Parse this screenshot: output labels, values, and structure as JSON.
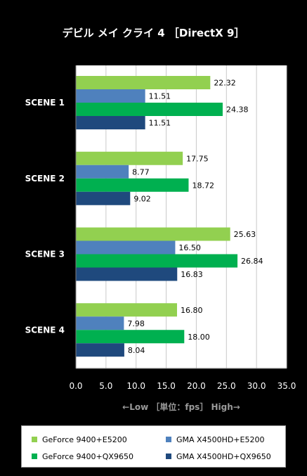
{
  "chart_data": {
    "type": "bar",
    "orientation": "horizontal",
    "title": "デビル メイ クライ 4 ［DirectX 9］",
    "xlabel": "←Low ［単位：fps］ High→",
    "categories": [
      "SCENE 1",
      "SCENE 2",
      "SCENE 3",
      "SCENE 4"
    ],
    "xlim": [
      0,
      35
    ],
    "ticks": [
      "0.0",
      "5.0",
      "10.0",
      "15.0",
      "20.0",
      "25.0",
      "30.0",
      "35.0"
    ],
    "grid": true,
    "legend_position": "bottom",
    "series": [
      {
        "name": "GeForce 9400+E5200",
        "color": "#92d050",
        "values": [
          22.32,
          17.75,
          25.63,
          16.8
        ],
        "labels": [
          "22.32",
          "17.75",
          "25.63",
          "16.80"
        ]
      },
      {
        "name": "GMA X4500HD+E5200",
        "color": "#4f81bd",
        "values": [
          11.51,
          8.77,
          16.5,
          7.98
        ],
        "labels": [
          "11.51",
          "8.77",
          "16.50",
          "7.98"
        ]
      },
      {
        "name": "GeForce 9400+QX9650",
        "color": "#00b050",
        "values": [
          24.38,
          18.72,
          26.84,
          18.0
        ],
        "labels": [
          "24.38",
          "18.72",
          "26.84",
          "18.00"
        ]
      },
      {
        "name": "GMA X4500HD+QX9650",
        "color": "#1f497d",
        "values": [
          11.51,
          9.02,
          16.83,
          8.04
        ],
        "labels": [
          "11.51",
          "9.02",
          "16.83",
          "8.04"
        ]
      }
    ]
  }
}
